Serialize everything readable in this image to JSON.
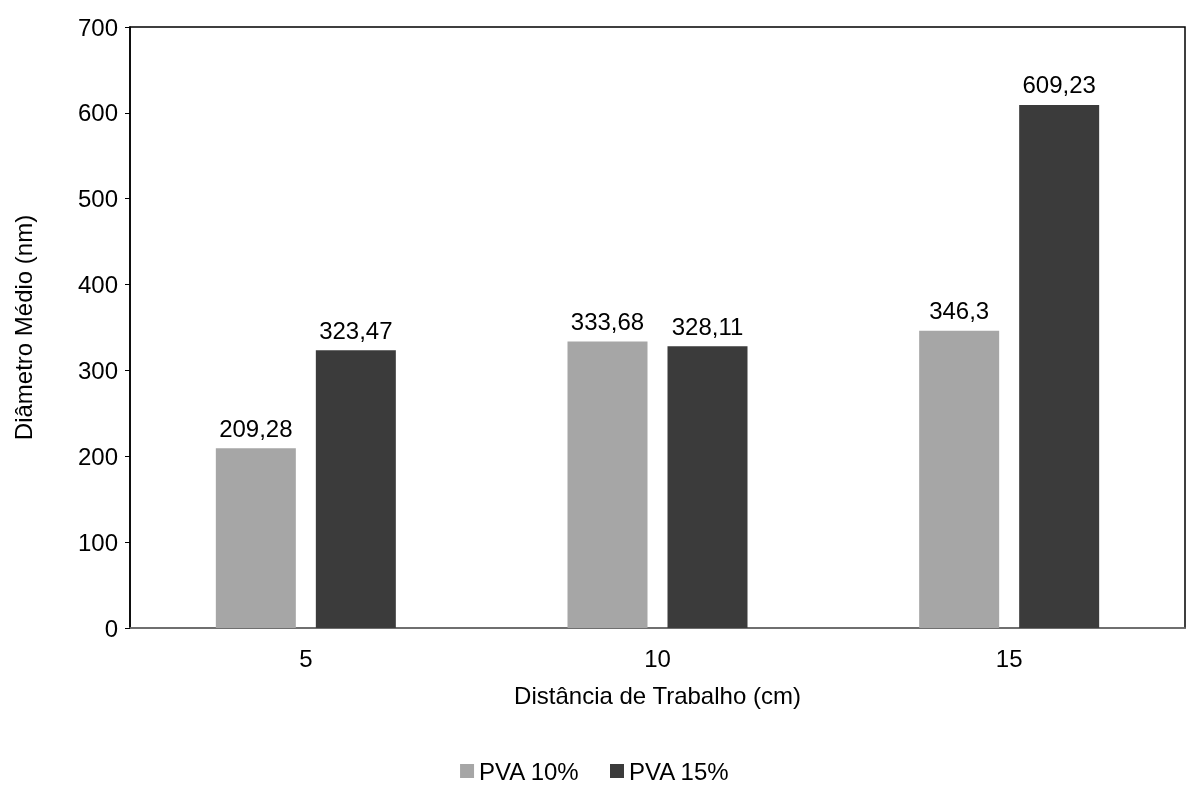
{
  "chart_data": {
    "type": "bar",
    "xlabel": "Distância de Trabalho (cm)",
    "ylabel": "Diâmetro Médio (nm)",
    "categories": [
      "5",
      "10",
      "15"
    ],
    "series": [
      {
        "name": "PVA 10%",
        "color": "#a6a6a6",
        "values": [
          209.28,
          333.68,
          346.3
        ],
        "value_labels": [
          "209,28",
          "333,68",
          "346,3"
        ]
      },
      {
        "name": "PVA 15%",
        "color": "#3b3b3b",
        "values": [
          323.47,
          328.11,
          609.23
        ],
        "value_labels": [
          "323,47",
          "328,11",
          "609,23"
        ]
      }
    ],
    "ylim": [
      0,
      700
    ],
    "yticks": [
      0,
      100,
      200,
      300,
      400,
      500,
      600,
      700
    ],
    "grid": false,
    "legend": "bottom"
  }
}
